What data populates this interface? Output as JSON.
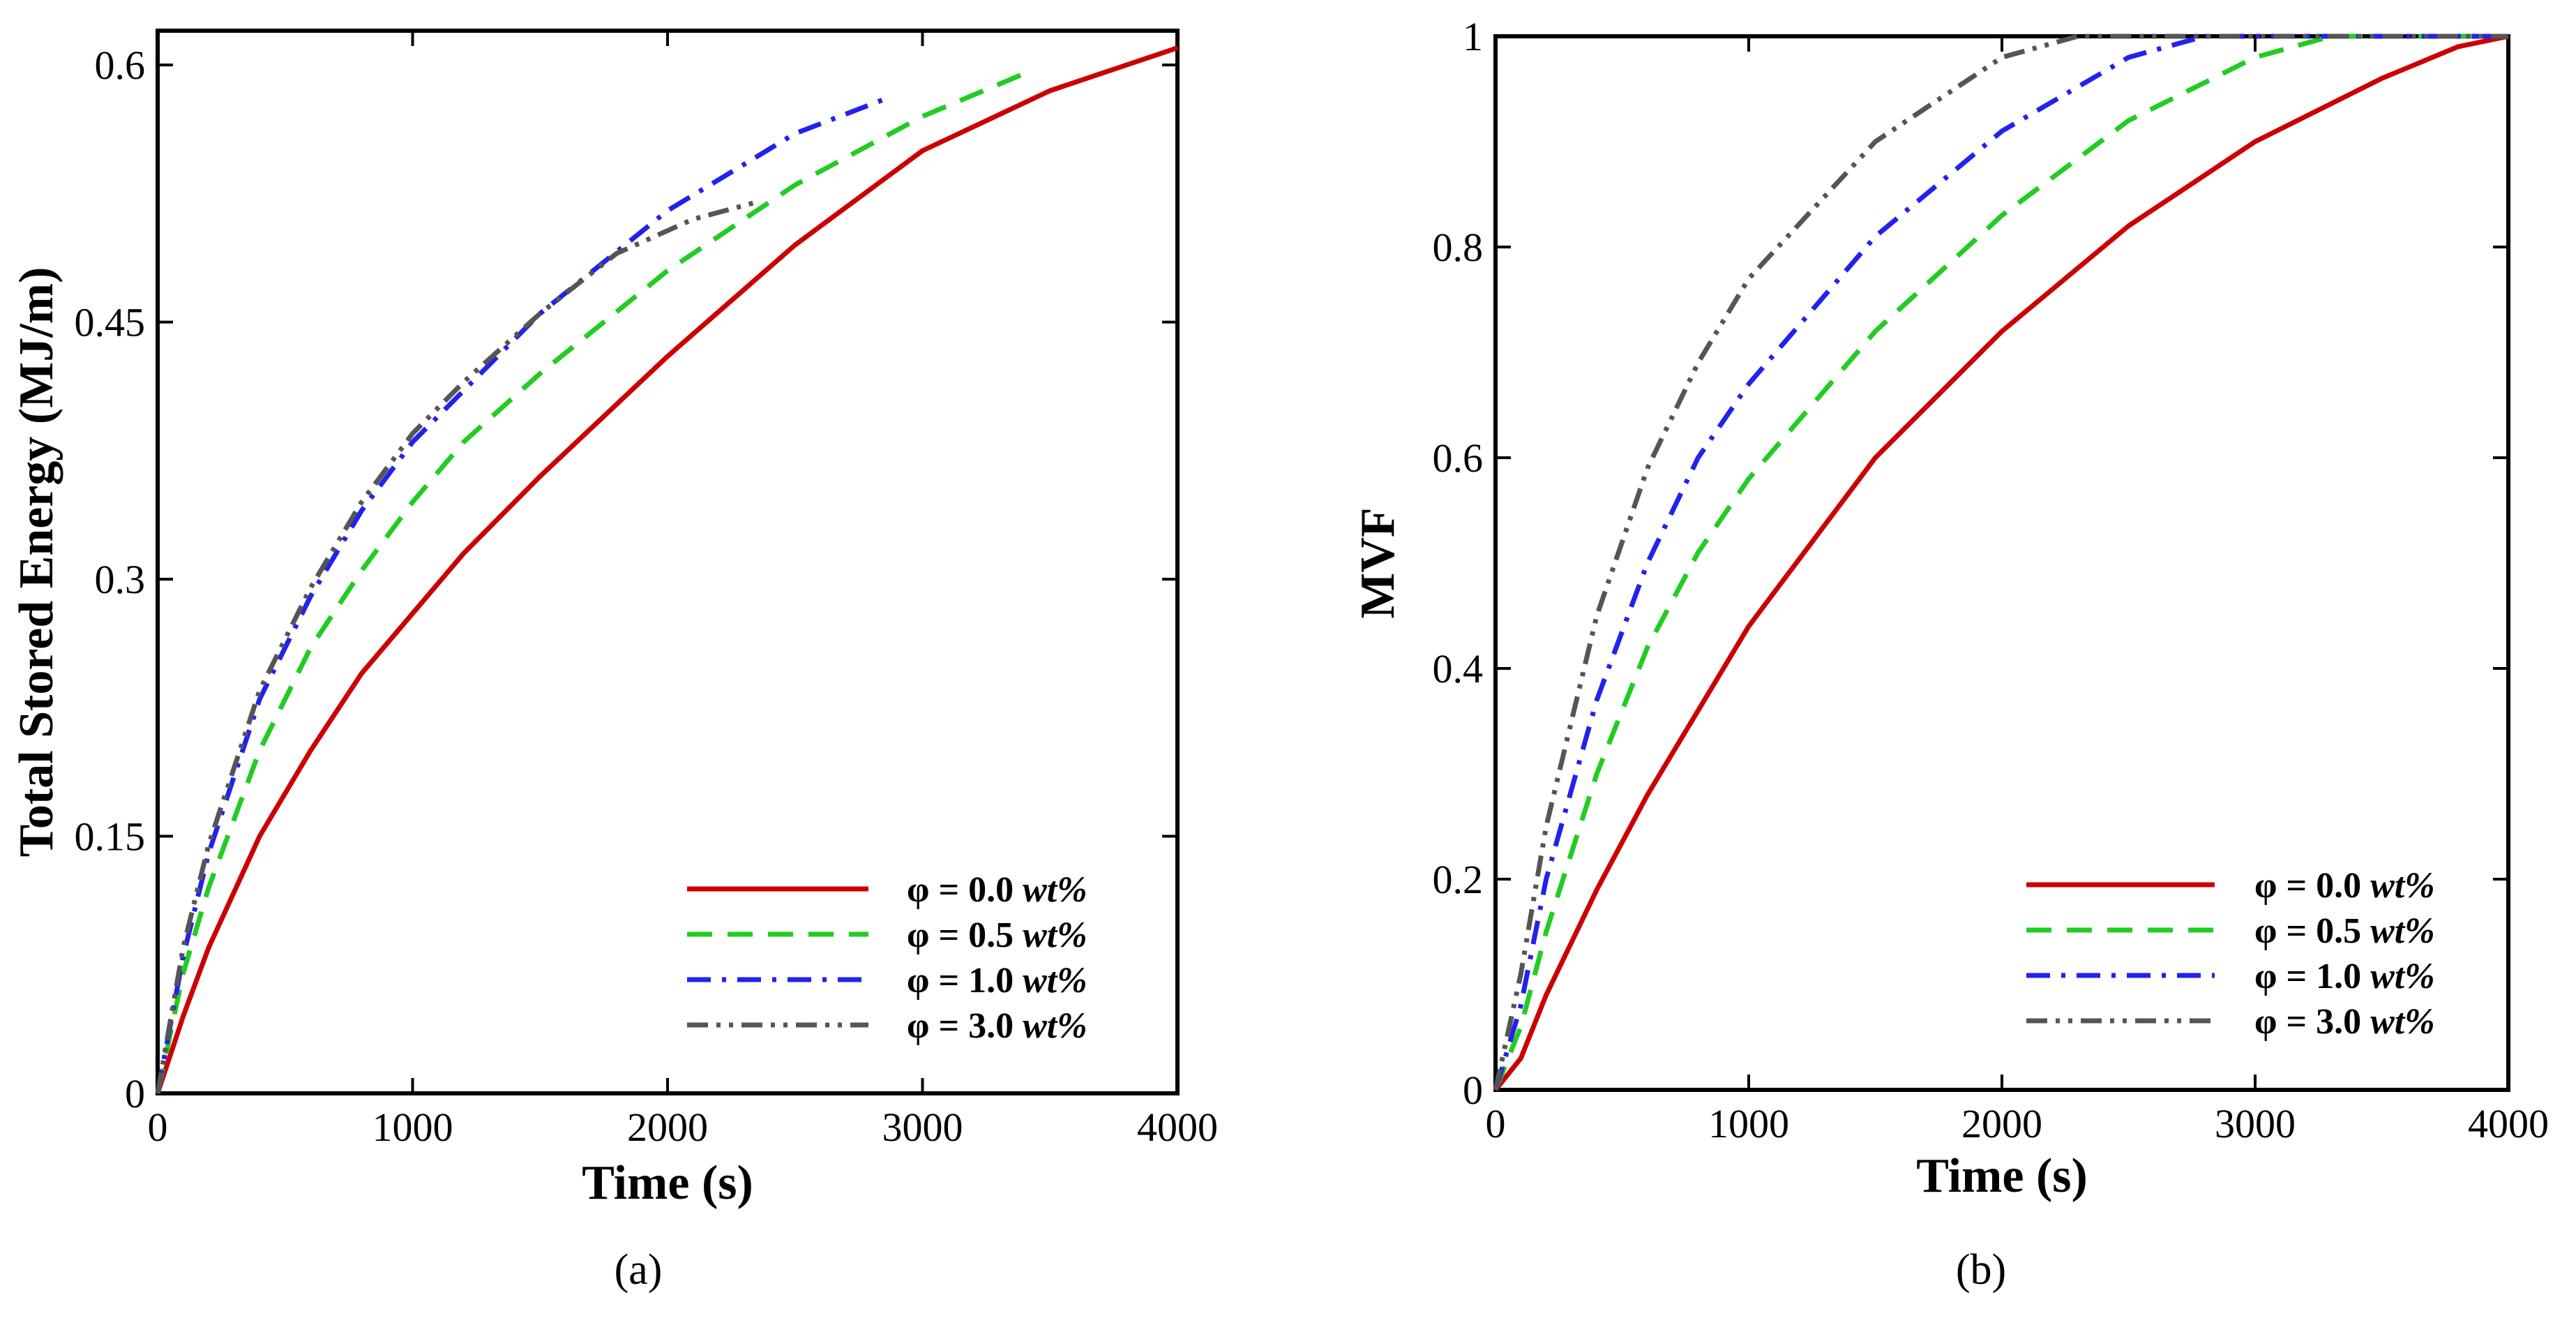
{
  "chart_data": [
    {
      "type": "line",
      "panel_label": "(a)",
      "title": "",
      "xlabel": "Time (s)",
      "ylabel": "Total Stored Energy (MJ/m)",
      "xlim": [
        0,
        4000
      ],
      "ylim": [
        0,
        0.62
      ],
      "xticks": [
        0,
        1000,
        2000,
        3000,
        4000
      ],
      "xtick_labels": [
        "0",
        "1000",
        "2000",
        "3000",
        "4000"
      ],
      "yticks": [
        0,
        0.15,
        0.3,
        0.45,
        0.6
      ],
      "ytick_labels": [
        "0",
        "0.15",
        "0.3",
        "0.45",
        "0.6"
      ],
      "legend_position": "bottom-right",
      "series": [
        {
          "name": "φ = 0.0 wt%",
          "phi": "φ = 0.0 ",
          "unit": "wt%",
          "color": "#cc0000",
          "style": "solid",
          "x": [
            0,
            100,
            200,
            400,
            600,
            800,
            1000,
            1200,
            1500,
            2000,
            2500,
            3000,
            3500,
            4000
          ],
          "y": [
            0,
            0.045,
            0.085,
            0.15,
            0.2,
            0.245,
            0.28,
            0.315,
            0.36,
            0.43,
            0.495,
            0.55,
            0.585,
            0.61
          ]
        },
        {
          "name": "φ = 0.5 wt%",
          "phi": "φ = 0.5 ",
          "unit": "wt%",
          "color": "#22cc22",
          "style": "dashed",
          "x": [
            0,
            100,
            200,
            400,
            600,
            800,
            1000,
            1200,
            1500,
            2000,
            2500,
            3000,
            3400
          ],
          "y": [
            0,
            0.07,
            0.12,
            0.2,
            0.26,
            0.305,
            0.345,
            0.38,
            0.42,
            0.48,
            0.53,
            0.57,
            0.595
          ]
        },
        {
          "name": "φ = 1.0 wt%",
          "phi": "φ = 1.0 ",
          "unit": "wt%",
          "color": "#2222ee",
          "style": "dashdot",
          "x": [
            0,
            100,
            200,
            400,
            600,
            800,
            1000,
            1200,
            1500,
            2000,
            2500,
            2850
          ],
          "y": [
            0,
            0.08,
            0.14,
            0.23,
            0.29,
            0.34,
            0.38,
            0.41,
            0.455,
            0.515,
            0.56,
            0.58
          ]
        },
        {
          "name": "φ = 3.0 wt%",
          "phi": "φ = 3.0 ",
          "unit": "wt%",
          "color": "#555555",
          "style": "dashdotdot",
          "x": [
            0,
            100,
            200,
            400,
            600,
            800,
            1000,
            1200,
            1500,
            1800,
            2100,
            2350
          ],
          "y": [
            0,
            0.085,
            0.145,
            0.235,
            0.295,
            0.345,
            0.385,
            0.415,
            0.455,
            0.49,
            0.51,
            0.52
          ]
        }
      ]
    },
    {
      "type": "line",
      "panel_label": "(b)",
      "title": "",
      "xlabel": "Time (s)",
      "ylabel": "MVF",
      "xlim": [
        0,
        4000
      ],
      "ylim": [
        0,
        1
      ],
      "xticks": [
        0,
        1000,
        2000,
        3000,
        4000
      ],
      "xtick_labels": [
        "0",
        "1000",
        "2000",
        "3000",
        "4000"
      ],
      "yticks": [
        0,
        0.2,
        0.4,
        0.6,
        0.8,
        1
      ],
      "ytick_labels": [
        "0",
        "0.2",
        "0.4",
        "0.6",
        "0.8",
        "1"
      ],
      "legend_position": "bottom-right",
      "series": [
        {
          "name": "φ = 0.0 wt%",
          "phi": "φ = 0.0 ",
          "unit": "wt%",
          "color": "#cc0000",
          "style": "solid",
          "x": [
            0,
            100,
            200,
            400,
            600,
            800,
            1000,
            1500,
            2000,
            2500,
            3000,
            3500,
            3800,
            4000
          ],
          "y": [
            0,
            0.03,
            0.09,
            0.19,
            0.28,
            0.36,
            0.44,
            0.6,
            0.72,
            0.82,
            0.9,
            0.96,
            0.99,
            1.0
          ]
        },
        {
          "name": "φ = 0.5 wt%",
          "phi": "φ = 0.5 ",
          "unit": "wt%",
          "color": "#22cc22",
          "style": "dashed",
          "x": [
            0,
            100,
            200,
            400,
            600,
            800,
            1000,
            1500,
            2000,
            2500,
            3000,
            3300,
            4000
          ],
          "y": [
            0,
            0.06,
            0.15,
            0.3,
            0.42,
            0.51,
            0.58,
            0.72,
            0.83,
            0.92,
            0.98,
            1.0,
            1.0
          ]
        },
        {
          "name": "φ = 1.0 wt%",
          "phi": "φ = 1.0 ",
          "unit": "wt%",
          "color": "#2222ee",
          "style": "dashdot",
          "x": [
            0,
            100,
            200,
            400,
            600,
            800,
            1000,
            1500,
            2000,
            2500,
            2800,
            4000
          ],
          "y": [
            0,
            0.08,
            0.2,
            0.37,
            0.5,
            0.6,
            0.67,
            0.81,
            0.91,
            0.98,
            1.0,
            1.0
          ]
        },
        {
          "name": "φ = 3.0 wt%",
          "phi": "φ = 3.0 ",
          "unit": "wt%",
          "color": "#555555",
          "style": "dashdotdot",
          "x": [
            0,
            100,
            200,
            400,
            600,
            800,
            1000,
            1500,
            2000,
            2300,
            4000
          ],
          "y": [
            0,
            0.11,
            0.25,
            0.45,
            0.59,
            0.69,
            0.77,
            0.9,
            0.98,
            1.0,
            1.0
          ]
        }
      ]
    }
  ]
}
